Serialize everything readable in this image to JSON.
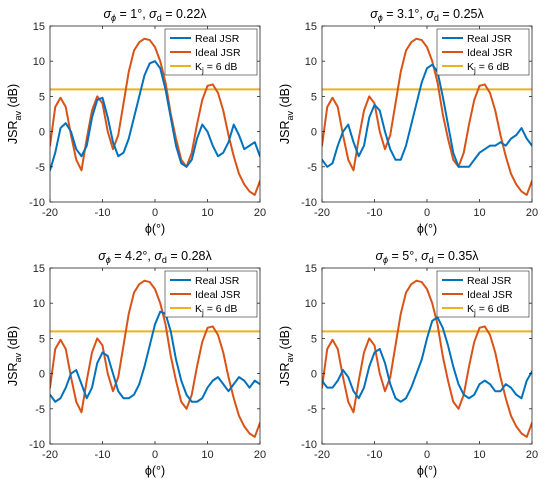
{
  "colors": {
    "real": "#0072BD",
    "ideal": "#D95319",
    "threshold": "#EDB120",
    "axis": "#262626"
  },
  "chart_data": [
    {
      "type": "line",
      "title": "σϕ = 1°, σd = 0.22λ",
      "title_parts": {
        "sym1": "σ",
        "sub1": "ϕ",
        "mid": " = 1°, ",
        "sym2": "σ",
        "sub2": "d",
        "tail": " = 0.22λ"
      },
      "xlabel": "ϕ(°)",
      "ylabel": "JSRav (dB)",
      "ylabel_parts": {
        "main": "JSR",
        "sub": "av",
        "tail": " (dB)"
      },
      "xlim": [
        -20,
        20
      ],
      "ylim": [
        -10,
        15
      ],
      "xticks": [
        "-20",
        "-10",
        "0",
        "10",
        "20"
      ],
      "yticks": [
        "-10",
        "-5",
        "0",
        "5",
        "10",
        "15"
      ],
      "grid": false,
      "legend_position": "top-right",
      "series": [
        {
          "name": "Real JSR",
          "color": "#0072BD",
          "x": [
            -20,
            -19,
            -18,
            -17,
            -16,
            -15,
            -14,
            -13,
            -12,
            -11,
            -10,
            -9,
            -8,
            -7,
            -6,
            -5,
            -4,
            -3,
            -2,
            -1,
            0,
            1,
            2,
            3,
            4,
            5,
            6,
            7,
            8,
            9,
            10,
            11,
            12,
            13,
            14,
            15,
            16,
            17,
            18,
            19,
            20
          ],
          "y": [
            -5.5,
            -3,
            0.5,
            1.2,
            0,
            -2.5,
            -3.5,
            -2,
            2,
            4.5,
            4.8,
            2,
            -1.5,
            -3.5,
            -3,
            -1,
            2,
            5,
            8,
            9.7,
            10,
            9,
            6,
            2,
            -2,
            -4.5,
            -5,
            -4,
            -1,
            1,
            0,
            -2,
            -3.5,
            -3,
            -1.5,
            1,
            -0.5,
            -2.5,
            -2,
            -1.5,
            -3.5
          ]
        },
        {
          "name": "Ideal JSR",
          "color": "#D95319",
          "x": [
            -20,
            -19,
            -18,
            -17,
            -16,
            -15,
            -14,
            -13,
            -12,
            -11,
            -10,
            -9,
            -8,
            -7,
            -6,
            -5,
            -4,
            -3,
            -2,
            -1,
            0,
            1,
            2,
            3,
            4,
            5,
            6,
            7,
            8,
            9,
            10,
            11,
            12,
            13,
            14,
            15,
            16,
            17,
            18,
            19,
            20
          ],
          "y": [
            -2,
            3.5,
            4.8,
            3.5,
            -0.5,
            -4,
            -5.5,
            -1,
            3,
            5,
            4,
            0,
            -2.5,
            -0.5,
            4,
            8.5,
            11.5,
            12.7,
            13.2,
            13,
            12,
            10,
            7,
            2.5,
            -1,
            -4,
            -5,
            -3,
            1,
            4.5,
            6.5,
            6.7,
            5.5,
            3,
            -0.5,
            -3.5,
            -6,
            -7.5,
            -8.5,
            -9,
            -7
          ]
        },
        {
          "name": "Kj = 6 dB",
          "color": "#EDB120",
          "x": [
            -20,
            20
          ],
          "y": [
            6,
            6
          ]
        }
      ],
      "legend": [
        {
          "label": "Real JSR",
          "color": "#0072BD"
        },
        {
          "label": "Ideal JSR",
          "color": "#D95319"
        },
        {
          "label": "Kj = 6 dB",
          "color": "#EDB120",
          "main": "K",
          "sub": "j",
          "tail": " = 6 dB"
        }
      ]
    },
    {
      "type": "line",
      "title": "σϕ = 3.1°, σd = 0.25λ",
      "title_parts": {
        "sym1": "σ",
        "sub1": "ϕ",
        "mid": " = 3.1°, ",
        "sym2": "σ",
        "sub2": "d",
        "tail": " = 0.25λ"
      },
      "xlabel": "ϕ(°)",
      "ylabel": "JSRav (dB)",
      "ylabel_parts": {
        "main": "JSR",
        "sub": "av",
        "tail": " (dB)"
      },
      "xlim": [
        -20,
        20
      ],
      "ylim": [
        -10,
        15
      ],
      "xticks": [
        "-20",
        "-10",
        "0",
        "10",
        "20"
      ],
      "yticks": [
        "-10",
        "-5",
        "0",
        "5",
        "10",
        "15"
      ],
      "grid": false,
      "legend_position": "top-right",
      "series": [
        {
          "name": "Real JSR",
          "color": "#0072BD",
          "x": [
            -20,
            -19,
            -18,
            -17,
            -16,
            -15,
            -14,
            -13,
            -12,
            -11,
            -10,
            -9,
            -8,
            -7,
            -6,
            -5,
            -4,
            -3,
            -2,
            -1,
            0,
            1,
            2,
            3,
            4,
            5,
            6,
            7,
            8,
            9,
            10,
            11,
            12,
            13,
            14,
            15,
            16,
            17,
            18,
            19,
            20
          ],
          "y": [
            -4,
            -5,
            -4.5,
            -2,
            0,
            1,
            -1.5,
            -3.5,
            -2,
            2,
            3.8,
            3,
            0,
            -2.5,
            -4,
            -4,
            -2,
            1,
            4,
            7,
            9,
            9.5,
            8.5,
            5,
            1,
            -3,
            -5,
            -5,
            -5,
            -4,
            -3,
            -2.5,
            -2,
            -2,
            -1.5,
            -2,
            -1,
            -0.5,
            0.5,
            -1,
            -2
          ]
        },
        {
          "name": "Ideal JSR",
          "color": "#D95319",
          "x": [
            -20,
            -19,
            -18,
            -17,
            -16,
            -15,
            -14,
            -13,
            -12,
            -11,
            -10,
            -9,
            -8,
            -7,
            -6,
            -5,
            -4,
            -3,
            -2,
            -1,
            0,
            1,
            2,
            3,
            4,
            5,
            6,
            7,
            8,
            9,
            10,
            11,
            12,
            13,
            14,
            15,
            16,
            17,
            18,
            19,
            20
          ],
          "y": [
            -2,
            3.5,
            4.8,
            3.5,
            -0.5,
            -4,
            -5.5,
            -1,
            3,
            5,
            4,
            0,
            -2.5,
            -0.5,
            4,
            8.5,
            11.5,
            12.7,
            13.2,
            13,
            12,
            10,
            7,
            2.5,
            -1,
            -4,
            -5,
            -3,
            1,
            4.5,
            6.5,
            6.7,
            5.5,
            3,
            -0.5,
            -3.5,
            -6,
            -7.5,
            -8.5,
            -9,
            -7
          ]
        },
        {
          "name": "Kj = 6 dB",
          "color": "#EDB120",
          "x": [
            -20,
            20
          ],
          "y": [
            6,
            6
          ]
        }
      ],
      "legend": [
        {
          "label": "Real JSR",
          "color": "#0072BD"
        },
        {
          "label": "Ideal JSR",
          "color": "#D95319"
        },
        {
          "label": "Kj = 6 dB",
          "color": "#EDB120",
          "main": "K",
          "sub": "j",
          "tail": " = 6 dB"
        }
      ]
    },
    {
      "type": "line",
      "title": "σϕ = 4.2°, σd = 0.28λ",
      "title_parts": {
        "sym1": "σ",
        "sub1": "ϕ",
        "mid": " = 4.2°, ",
        "sym2": "σ",
        "sub2": "d",
        "tail": " = 0.28λ"
      },
      "xlabel": "ϕ(°)",
      "ylabel": "JSRav (dB)",
      "ylabel_parts": {
        "main": "JSR",
        "sub": "av",
        "tail": " (dB)"
      },
      "xlim": [
        -20,
        20
      ],
      "ylim": [
        -10,
        15
      ],
      "xticks": [
        "-20",
        "-10",
        "0",
        "10",
        "20"
      ],
      "yticks": [
        "-10",
        "-5",
        "0",
        "5",
        "10",
        "15"
      ],
      "grid": false,
      "legend_position": "top-right",
      "series": [
        {
          "name": "Real JSR",
          "color": "#0072BD",
          "x": [
            -20,
            -19,
            -18,
            -17,
            -16,
            -15,
            -14,
            -13,
            -12,
            -11,
            -10,
            -9,
            -8,
            -7,
            -6,
            -5,
            -4,
            -3,
            -2,
            -1,
            0,
            1,
            2,
            3,
            4,
            5,
            6,
            7,
            8,
            9,
            10,
            11,
            12,
            13,
            14,
            15,
            16,
            17,
            18,
            19,
            20
          ],
          "y": [
            -3,
            -4,
            -3.5,
            -2,
            0,
            0.5,
            -1.5,
            -3.5,
            -2,
            1.5,
            3,
            2.5,
            0,
            -2.5,
            -3.5,
            -3.5,
            -3,
            -1.5,
            1,
            4,
            7,
            8.8,
            8.5,
            6,
            2,
            -1,
            -3,
            -4,
            -4,
            -3.5,
            -2,
            -1,
            -0.5,
            -1.5,
            -2.5,
            -1.5,
            -0.5,
            -1,
            -2,
            -1,
            -1.5
          ]
        },
        {
          "name": "Ideal JSR",
          "color": "#D95319",
          "x": [
            -20,
            -19,
            -18,
            -17,
            -16,
            -15,
            -14,
            -13,
            -12,
            -11,
            -10,
            -9,
            -8,
            -7,
            -6,
            -5,
            -4,
            -3,
            -2,
            -1,
            0,
            1,
            2,
            3,
            4,
            5,
            6,
            7,
            8,
            9,
            10,
            11,
            12,
            13,
            14,
            15,
            16,
            17,
            18,
            19,
            20
          ],
          "y": [
            -2,
            3.5,
            4.8,
            3.5,
            -0.5,
            -4,
            -5.5,
            -1,
            3,
            5,
            4,
            0,
            -2.5,
            -0.5,
            4,
            8.5,
            11.5,
            12.7,
            13.2,
            13,
            12,
            10,
            7,
            2.5,
            -1,
            -4,
            -5,
            -3,
            1,
            4.5,
            6.5,
            6.7,
            5.5,
            3,
            -0.5,
            -3.5,
            -6,
            -7.5,
            -8.5,
            -9,
            -7
          ]
        },
        {
          "name": "Kj = 6 dB",
          "color": "#EDB120",
          "x": [
            -20,
            20
          ],
          "y": [
            6,
            6
          ]
        }
      ],
      "legend": [
        {
          "label": "Real JSR",
          "color": "#0072BD"
        },
        {
          "label": "Ideal JSR",
          "color": "#D95319"
        },
        {
          "label": "Kj = 6 dB",
          "color": "#EDB120",
          "main": "K",
          "sub": "j",
          "tail": " = 6 dB"
        }
      ]
    },
    {
      "type": "line",
      "title": "σϕ = 5°, σd = 0.35λ",
      "title_parts": {
        "sym1": "σ",
        "sub1": "ϕ",
        "mid": " = 5°, ",
        "sym2": "σ",
        "sub2": "d",
        "tail": " = 0.35λ"
      },
      "xlabel": "ϕ(°)",
      "ylabel": "JSRav (dB)",
      "ylabel_parts": {
        "main": "JSR",
        "sub": "av",
        "tail": " (dB)"
      },
      "xlim": [
        -20,
        20
      ],
      "ylim": [
        -10,
        15
      ],
      "xticks": [
        "-20",
        "-10",
        "0",
        "10",
        "20"
      ],
      "yticks": [
        "-10",
        "-5",
        "0",
        "5",
        "10",
        "15"
      ],
      "grid": false,
      "legend_position": "top-right",
      "series": [
        {
          "name": "Real JSR",
          "color": "#0072BD",
          "x": [
            -20,
            -19,
            -18,
            -17,
            -16,
            -15,
            -14,
            -13,
            -12,
            -11,
            -10,
            -9,
            -8,
            -7,
            -6,
            -5,
            -4,
            -3,
            -2,
            -1,
            0,
            1,
            2,
            3,
            4,
            5,
            6,
            7,
            8,
            9,
            10,
            11,
            12,
            13,
            14,
            15,
            16,
            17,
            18,
            19,
            20
          ],
          "y": [
            -1,
            -2,
            -2,
            -1,
            0.5,
            -0.5,
            -2.5,
            -3.5,
            -2,
            1,
            3,
            3.5,
            1.5,
            -1.5,
            -3.5,
            -4,
            -3.5,
            -2,
            0,
            2,
            5,
            7.5,
            8,
            6.5,
            4,
            1,
            -1.5,
            -3,
            -3.5,
            -3,
            -1.5,
            -1,
            -1.5,
            -2.5,
            -2.5,
            -1.5,
            -2,
            -3,
            -3.5,
            -1,
            0.3
          ]
        },
        {
          "name": "Ideal JSR",
          "color": "#D95319",
          "x": [
            -20,
            -19,
            -18,
            -17,
            -16,
            -15,
            -14,
            -13,
            -12,
            -11,
            -10,
            -9,
            -8,
            -7,
            -6,
            -5,
            -4,
            -3,
            -2,
            -1,
            0,
            1,
            2,
            3,
            4,
            5,
            6,
            7,
            8,
            9,
            10,
            11,
            12,
            13,
            14,
            15,
            16,
            17,
            18,
            19,
            20
          ],
          "y": [
            -2,
            3.5,
            4.8,
            3.5,
            -0.5,
            -4,
            -5.5,
            -1,
            3,
            5,
            4,
            0,
            -2.5,
            -0.5,
            4,
            8.5,
            11.5,
            12.7,
            13.2,
            13,
            12,
            10,
            7,
            2.5,
            -1,
            -4,
            -5,
            -3,
            1,
            4.5,
            6.5,
            6.7,
            5.5,
            3,
            -0.5,
            -3.5,
            -6,
            -7.5,
            -8.5,
            -9,
            -7
          ]
        },
        {
          "name": "Kj = 6 dB",
          "color": "#EDB120",
          "x": [
            -20,
            20
          ],
          "y": [
            6,
            6
          ]
        }
      ],
      "legend": [
        {
          "label": "Real JSR",
          "color": "#0072BD"
        },
        {
          "label": "Ideal JSR",
          "color": "#D95319"
        },
        {
          "label": "Kj = 6 dB",
          "color": "#EDB120",
          "main": "K",
          "sub": "j",
          "tail": " = 6 dB"
        }
      ]
    }
  ]
}
